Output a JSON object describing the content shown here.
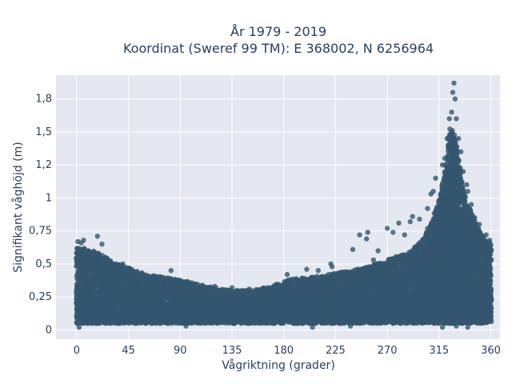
{
  "chart_data": {
    "type": "scatter",
    "title_line1": "År 1979 - 2019",
    "title_line2": "Koordinat (Sweref 99 TM): E 368002, N 6256964",
    "xlabel": "Vågriktning (grader)",
    "ylabel": "Signifikant våghöjd (m)",
    "xlim": [
      -18,
      368
    ],
    "ylim": [
      -0.07,
      1.93
    ],
    "xticks": [
      0,
      45,
      90,
      135,
      180,
      225,
      270,
      315,
      360
    ],
    "xtick_labels": [
      "0",
      "45",
      "90",
      "135",
      "180",
      "225",
      "270",
      "315",
      "360"
    ],
    "yticks": [
      0,
      0.25,
      0.5,
      0.75,
      1,
      1.25,
      1.5,
      1.75
    ],
    "ytick_labels": [
      "0",
      "0,25",
      "0,5",
      "0,75",
      "1",
      "1,2",
      "1,5",
      "1,8"
    ],
    "grid": true,
    "marker_color": "#34566f",
    "background_color": "#e5e8f0",
    "upper_envelope": {
      "x": [
        0,
        10,
        20,
        30,
        45,
        60,
        90,
        120,
        135,
        150,
        170,
        180,
        200,
        225,
        250,
        270,
        290,
        300,
        310,
        315,
        320,
        325,
        330,
        335,
        340,
        350,
        360
      ],
      "y": [
        0.62,
        0.62,
        0.58,
        0.52,
        0.47,
        0.42,
        0.38,
        0.32,
        0.3,
        0.3,
        0.33,
        0.38,
        0.4,
        0.43,
        0.47,
        0.53,
        0.6,
        0.68,
        0.85,
        0.98,
        1.2,
        1.55,
        1.45,
        1.1,
        0.95,
        0.75,
        0.65
      ]
    },
    "lower_bound": 0.05,
    "outliers": [
      {
        "x": 1,
        "y": 0.67
      },
      {
        "x": 4,
        "y": 0.66
      },
      {
        "x": 6,
        "y": 0.68
      },
      {
        "x": 18,
        "y": 0.71
      },
      {
        "x": 22,
        "y": 0.65
      },
      {
        "x": 40,
        "y": 0.5
      },
      {
        "x": 82,
        "y": 0.45
      },
      {
        "x": 120,
        "y": 0.33
      },
      {
        "x": 135,
        "y": 0.32
      },
      {
        "x": 150,
        "y": 0.31
      },
      {
        "x": 158,
        "y": 0.3
      },
      {
        "x": 183,
        "y": 0.42
      },
      {
        "x": 200,
        "y": 0.46
      },
      {
        "x": 210,
        "y": 0.45
      },
      {
        "x": 221,
        "y": 0.5
      },
      {
        "x": 222,
        "y": 0.48
      },
      {
        "x": 240,
        "y": 0.61
      },
      {
        "x": 246,
        "y": 0.72
      },
      {
        "x": 252,
        "y": 0.69
      },
      {
        "x": 253,
        "y": 0.74
      },
      {
        "x": 258,
        "y": 0.53
      },
      {
        "x": 262,
        "y": 0.6
      },
      {
        "x": 270,
        "y": 0.77
      },
      {
        "x": 275,
        "y": 0.74
      },
      {
        "x": 280,
        "y": 0.81
      },
      {
        "x": 285,
        "y": 0.72
      },
      {
        "x": 290,
        "y": 0.82
      },
      {
        "x": 292,
        "y": 0.86
      },
      {
        "x": 298,
        "y": 0.84
      },
      {
        "x": 305,
        "y": 0.92
      },
      {
        "x": 308,
        "y": 1.03
      },
      {
        "x": 310,
        "y": 1.05
      },
      {
        "x": 312,
        "y": 1.15
      },
      {
        "x": 318,
        "y": 1.25
      },
      {
        "x": 320,
        "y": 1.3
      },
      {
        "x": 322,
        "y": 1.45
      },
      {
        "x": 324,
        "y": 1.6
      },
      {
        "x": 326,
        "y": 1.65
      },
      {
        "x": 327,
        "y": 1.8
      },
      {
        "x": 328,
        "y": 1.87
      },
      {
        "x": 329,
        "y": 1.75
      },
      {
        "x": 330,
        "y": 1.6
      },
      {
        "x": 332,
        "y": 1.45
      },
      {
        "x": 334,
        "y": 1.35
      },
      {
        "x": 336,
        "y": 1.2
      },
      {
        "x": 339,
        "y": 1.1
      },
      {
        "x": 340,
        "y": 1.05
      },
      {
        "x": 343,
        "y": 0.95
      },
      {
        "x": 346,
        "y": 0.85
      },
      {
        "x": 350,
        "y": 0.8
      },
      {
        "x": 356,
        "y": 0.72
      },
      {
        "x": 359,
        "y": 0.68
      },
      {
        "x": 95,
        "y": 0.03
      },
      {
        "x": 205,
        "y": 0.02
      },
      {
        "x": 222,
        "y": 0.05
      },
      {
        "x": 238,
        "y": 0.03
      },
      {
        "x": 318,
        "y": 0.02
      },
      {
        "x": 330,
        "y": 0.03
      },
      {
        "x": 340,
        "y": 0.02
      },
      {
        "x": 2,
        "y": 0.02
      }
    ]
  }
}
